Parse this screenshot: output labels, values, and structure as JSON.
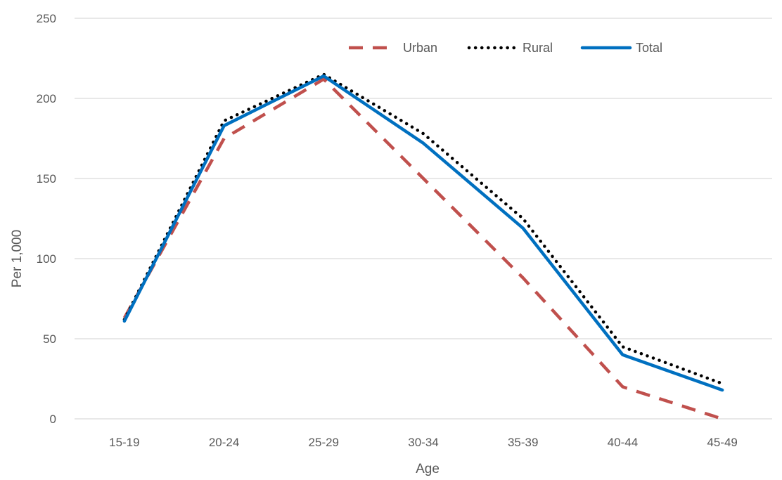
{
  "chart_data": {
    "type": "line",
    "title": "",
    "xlabel": "Age",
    "ylabel": "Per 1,000",
    "categories": [
      "15-19",
      "20-24",
      "25-29",
      "30-34",
      "35-39",
      "40-44",
      "45-49"
    ],
    "ylim": [
      0,
      250
    ],
    "yticks": [
      0,
      50,
      100,
      150,
      200,
      250
    ],
    "grid": true,
    "legend_position": "top-right",
    "series": [
      {
        "name": "Urban",
        "values": [
          63,
          175,
          212,
          150,
          88,
          20,
          0
        ],
        "color": "#c0504d",
        "style": "dashed"
      },
      {
        "name": "Rural",
        "values": [
          62,
          186,
          215,
          178,
          125,
          45,
          22
        ],
        "color": "#000000",
        "style": "dotted"
      },
      {
        "name": "Total",
        "values": [
          61,
          183,
          214,
          172,
          119,
          40,
          18
        ],
        "color": "#0070c0",
        "style": "solid"
      }
    ]
  }
}
